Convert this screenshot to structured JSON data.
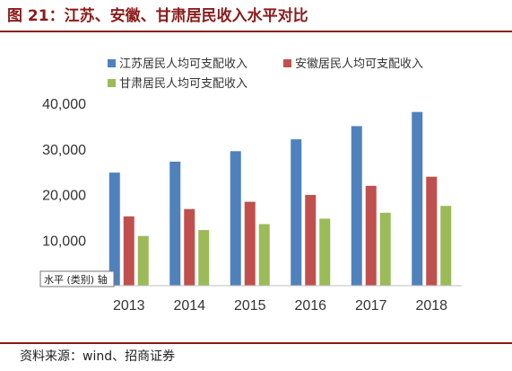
{
  "page": {
    "title": "图 21：江苏、安徽、甘肃居民收入水平对比",
    "source": "资料来源：wind、招商证券",
    "axis_tooltip": "水平 (类别) 轴"
  },
  "colors": {
    "accent": "#8B1A1A",
    "jiangsu": "#4F81BD",
    "anhui": "#C0504D",
    "gansu": "#9BBB59"
  },
  "chart_data": {
    "type": "bar",
    "title": "",
    "xlabel": "",
    "ylabel": "",
    "categories": [
      "2013",
      "2014",
      "2015",
      "2016",
      "2017",
      "2018"
    ],
    "series": [
      {
        "name": "江苏居民人均可支配收入",
        "color": "#4F81BD",
        "values": [
          24800,
          27200,
          29500,
          32100,
          35000,
          38100
        ]
      },
      {
        "name": "安徽居民人均可支配收入",
        "color": "#C0504D",
        "values": [
          15200,
          16800,
          18400,
          19900,
          21900,
          23900
        ]
      },
      {
        "name": "甘肃居民人均可支配收入",
        "color": "#9BBB59",
        "values": [
          10900,
          12200,
          13500,
          14700,
          16000,
          17500
        ]
      }
    ],
    "ylim": [
      0,
      40000
    ],
    "yticks": [
      10000,
      20000,
      30000,
      40000
    ],
    "ytick_labels": [
      "10,000",
      "20,000",
      "30,000",
      "40,000"
    ],
    "grid": false,
    "legend": "top"
  }
}
